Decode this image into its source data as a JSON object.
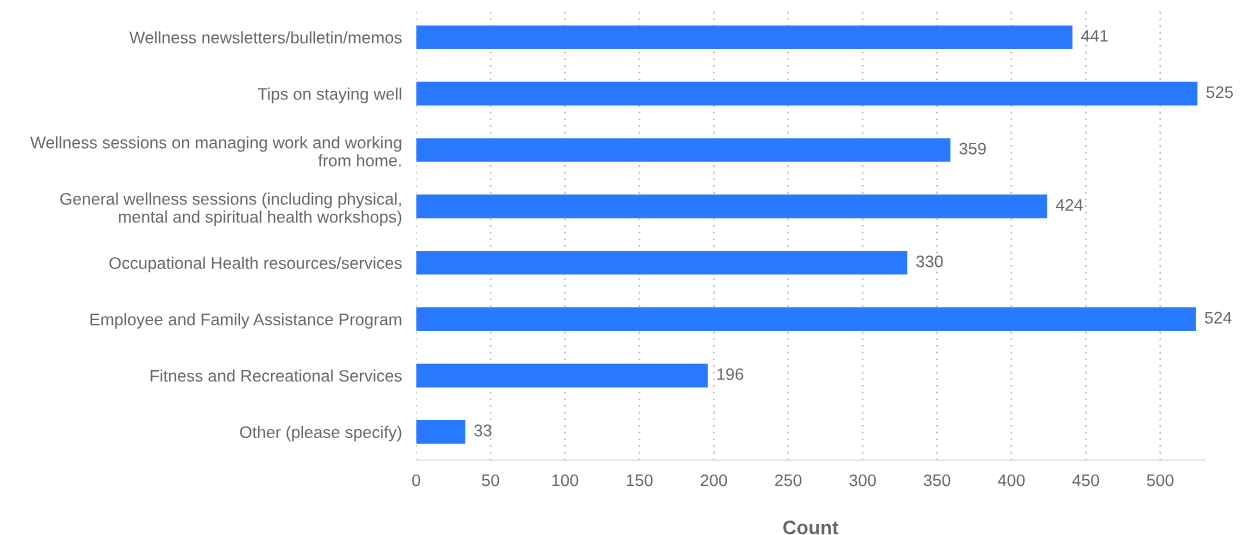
{
  "chart_data": {
    "type": "bar",
    "orientation": "horizontal",
    "xlabel": "Count",
    "categories": [
      "Wellness newsletters/bulletin/memos",
      "Tips on staying well",
      "Wellness sessions on managing work and working\nfrom home.",
      "General wellness sessions (including physical,\nmental and spiritual health workshops)",
      "Occupational Health resources/services",
      "Employee and Family Assistance Program",
      "Fitness and Recreational Services",
      "Other (please specify)"
    ],
    "values": [
      441,
      525,
      359,
      424,
      330,
      524,
      196,
      33
    ],
    "color": "#2979ff",
    "data_labels": true,
    "grid": "x",
    "legend": false,
    "xlim": [
      0,
      530
    ],
    "xticks": [
      0,
      50,
      100,
      150,
      200,
      250,
      300,
      350,
      400,
      450,
      500
    ]
  }
}
